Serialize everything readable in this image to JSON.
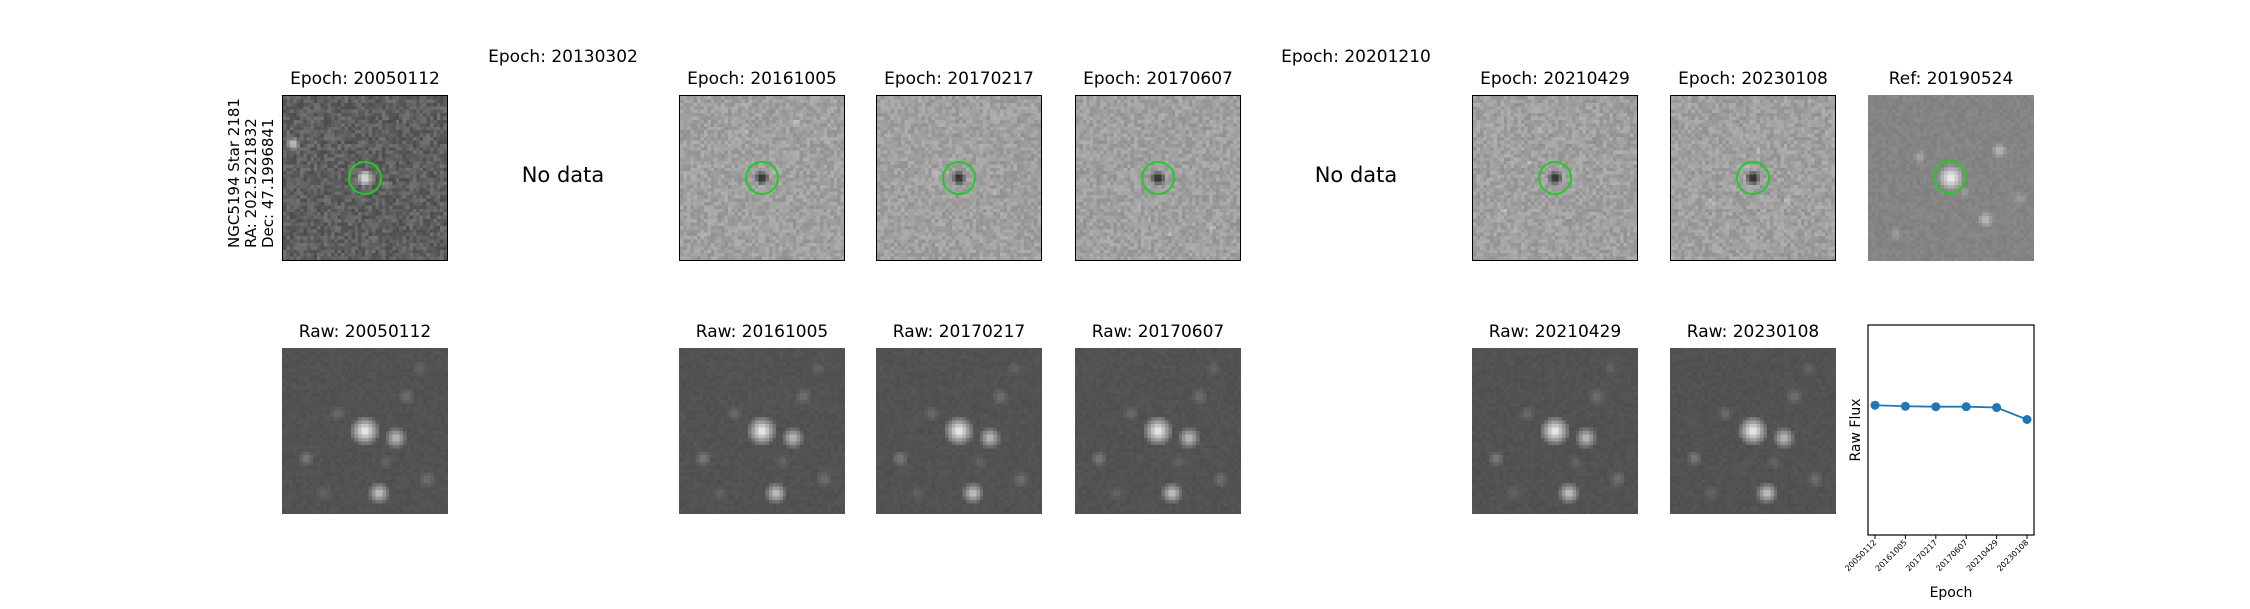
{
  "star_label": [
    "NGC5194 Star 2181",
    "RA: 202.5221832",
    "Dec: 47.1996841"
  ],
  "no_data_text": "No data",
  "top_row": [
    {
      "title": "Epoch: 20050112",
      "has_data": true,
      "tone": "dark",
      "marker": "bright-star"
    },
    {
      "title": "Epoch: 20130302",
      "has_data": false
    },
    {
      "title": "Epoch: 20161005",
      "has_data": true,
      "tone": "light",
      "marker": "dark-dip"
    },
    {
      "title": "Epoch: 20170217",
      "has_data": true,
      "tone": "light",
      "marker": "dark-dip"
    },
    {
      "title": "Epoch: 20170607",
      "has_data": true,
      "tone": "light",
      "marker": "dark-dip"
    },
    {
      "title": "Epoch: 20201210",
      "has_data": false
    },
    {
      "title": "Epoch: 20210429",
      "has_data": true,
      "tone": "light",
      "marker": "dark-dip"
    },
    {
      "title": "Epoch: 20230108",
      "has_data": true,
      "tone": "light",
      "marker": "dark-dip"
    },
    {
      "title": "Ref: 20190524",
      "has_data": true,
      "tone": "ref",
      "marker": "bright-star"
    }
  ],
  "bottom_row": [
    {
      "title": "Raw: 20050112"
    },
    null,
    {
      "title": "Raw: 20161005"
    },
    {
      "title": "Raw: 20170217"
    },
    {
      "title": "Raw: 20170607"
    },
    null,
    {
      "title": "Raw: 20210429"
    },
    {
      "title": "Raw: 20230108"
    }
  ],
  "circle_color": "#22cc22",
  "chart_data": {
    "type": "line",
    "title": "",
    "xlabel": "Epoch",
    "ylabel": "Raw Flux",
    "categories": [
      "20050112",
      "20161005",
      "20170217",
      "20170607",
      "20210429",
      "20230108"
    ],
    "values": [
      0.618,
      0.613,
      0.611,
      0.611,
      0.607,
      0.55
    ],
    "ylim": [
      0,
      1
    ],
    "y_ticks_visible": false,
    "grid": false,
    "marker": "circle",
    "color": "#1f77b4"
  }
}
